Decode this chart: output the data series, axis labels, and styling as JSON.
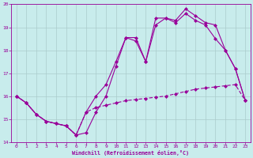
{
  "xlabel": "Windchill (Refroidissement éolien,°C)",
  "bg_color": "#c8ecec",
  "line_color": "#990099",
  "grid_color": "#aacccc",
  "xlim": [
    -0.5,
    23.5
  ],
  "ylim": [
    14,
    20
  ],
  "yticks": [
    14,
    15,
    16,
    17,
    18,
    19,
    20
  ],
  "xticks": [
    0,
    1,
    2,
    3,
    4,
    5,
    6,
    7,
    8,
    9,
    10,
    11,
    12,
    13,
    14,
    15,
    16,
    17,
    18,
    19,
    20,
    21,
    22,
    23
  ],
  "line_jagged_x": [
    0,
    1,
    2,
    3,
    4,
    5,
    6,
    7,
    8,
    9,
    10,
    11,
    12,
    13,
    14,
    15,
    16,
    17,
    18,
    19,
    20,
    21,
    22,
    23
  ],
  "line_jagged_y": [
    16.0,
    15.7,
    15.2,
    14.9,
    14.8,
    14.7,
    14.3,
    14.4,
    15.3,
    16.0,
    17.3,
    18.55,
    18.55,
    17.5,
    19.4,
    19.4,
    19.3,
    19.8,
    19.5,
    19.2,
    19.1,
    18.0,
    17.2,
    15.8
  ],
  "line_smooth_x": [
    0,
    1,
    2,
    3,
    4,
    5,
    6,
    7,
    8,
    9,
    10,
    11,
    12,
    13,
    14,
    15,
    16,
    17,
    18,
    19,
    20,
    21,
    22,
    23
  ],
  "line_smooth_y": [
    16.0,
    15.7,
    15.2,
    14.9,
    14.8,
    14.7,
    14.3,
    15.3,
    16.0,
    16.5,
    17.5,
    18.55,
    18.4,
    17.5,
    19.1,
    19.4,
    19.2,
    19.6,
    19.3,
    19.1,
    18.5,
    18.0,
    17.2,
    15.8
  ],
  "line_dashed_x": [
    0,
    1,
    2,
    3,
    4,
    5,
    6,
    7,
    8,
    9,
    10,
    11,
    12,
    13,
    14,
    15,
    16,
    17,
    18,
    19,
    20,
    21,
    22,
    23
  ],
  "line_dashed_y": [
    16.0,
    15.7,
    15.2,
    14.9,
    14.8,
    14.7,
    14.3,
    15.3,
    15.5,
    15.6,
    15.7,
    15.8,
    15.85,
    15.9,
    15.95,
    16.0,
    16.1,
    16.2,
    16.3,
    16.35,
    16.4,
    16.45,
    16.5,
    15.8
  ]
}
